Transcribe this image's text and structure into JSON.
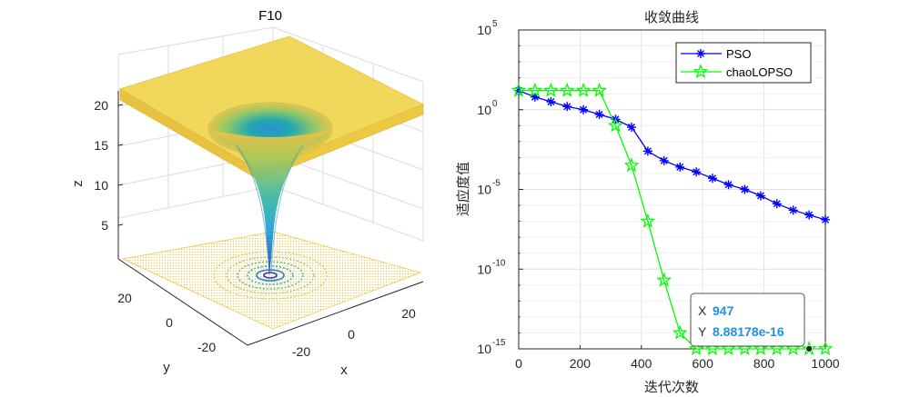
{
  "chart_data": [
    {
      "type": "surface3d",
      "title": "F10",
      "xlabel": "x",
      "ylabel": "y",
      "zlabel": "z",
      "xticks": [
        "-20",
        "0",
        "20"
      ],
      "yticks": [
        "-20",
        "0",
        "20"
      ],
      "zticks": [
        "5",
        "10",
        "15",
        "20"
      ],
      "xlim": [
        -32,
        32
      ],
      "ylim": [
        -32,
        32
      ],
      "zlim": [
        0,
        22
      ],
      "colormap": "parula",
      "contour_projection": true
    },
    {
      "type": "line",
      "title": "收敛曲线",
      "xlabel": "迭代次数",
      "ylabel": "适应度值",
      "xlim": [
        0,
        1000
      ],
      "ylim_log10": [
        -15,
        5
      ],
      "yscale": "log",
      "xticks": [
        "0",
        "200",
        "400",
        "600",
        "800",
        "1000"
      ],
      "yticks": [
        {
          "base": "10",
          "exp": "5",
          "pow": 5
        },
        {
          "base": "10",
          "exp": "0",
          "pow": 0
        },
        {
          "base": "10",
          "exp": "-5",
          "pow": -5
        },
        {
          "base": "10",
          "exp": "-10",
          "pow": -10
        },
        {
          "base": "10",
          "exp": "-15",
          "pow": -15
        }
      ],
      "grid": true,
      "legend_position": "top-right",
      "series": [
        {
          "name": "PSO",
          "color": "#0000ff",
          "marker": "asterisk",
          "x": [
            0,
            53,
            105,
            158,
            211,
            263,
            316,
            368,
            421,
            474,
            526,
            579,
            632,
            684,
            737,
            789,
            842,
            895,
            947,
            1000
          ],
          "log10y": [
            1.2,
            0.8,
            0.5,
            0.2,
            0.0,
            -0.3,
            -0.6,
            -1.1,
            -2.6,
            -3.2,
            -3.6,
            -3.9,
            -4.3,
            -4.7,
            -5.0,
            -5.4,
            -5.9,
            -6.3,
            -6.6,
            -6.9
          ]
        },
        {
          "name": "chaoLOPSO",
          "color": "#00ff00",
          "marker": "pentagram",
          "x": [
            0,
            53,
            105,
            158,
            211,
            263,
            316,
            368,
            421,
            474,
            526,
            579,
            632,
            684,
            737,
            789,
            842,
            895,
            947,
            1000
          ],
          "log10y": [
            1.2,
            1.2,
            1.2,
            1.2,
            1.2,
            1.2,
            -1.0,
            -3.5,
            -7.0,
            -10.7,
            -14.0,
            -15.0,
            -15.0,
            -15.0,
            -15.0,
            -15.0,
            -15.0,
            -15.0,
            -15.0,
            -15.0
          ]
        }
      ],
      "datatip": {
        "x_label": "X",
        "x_value": "947",
        "y_label": "Y",
        "y_value": "8.88178e-16",
        "x": 947,
        "log10y": -15.05
      }
    }
  ]
}
